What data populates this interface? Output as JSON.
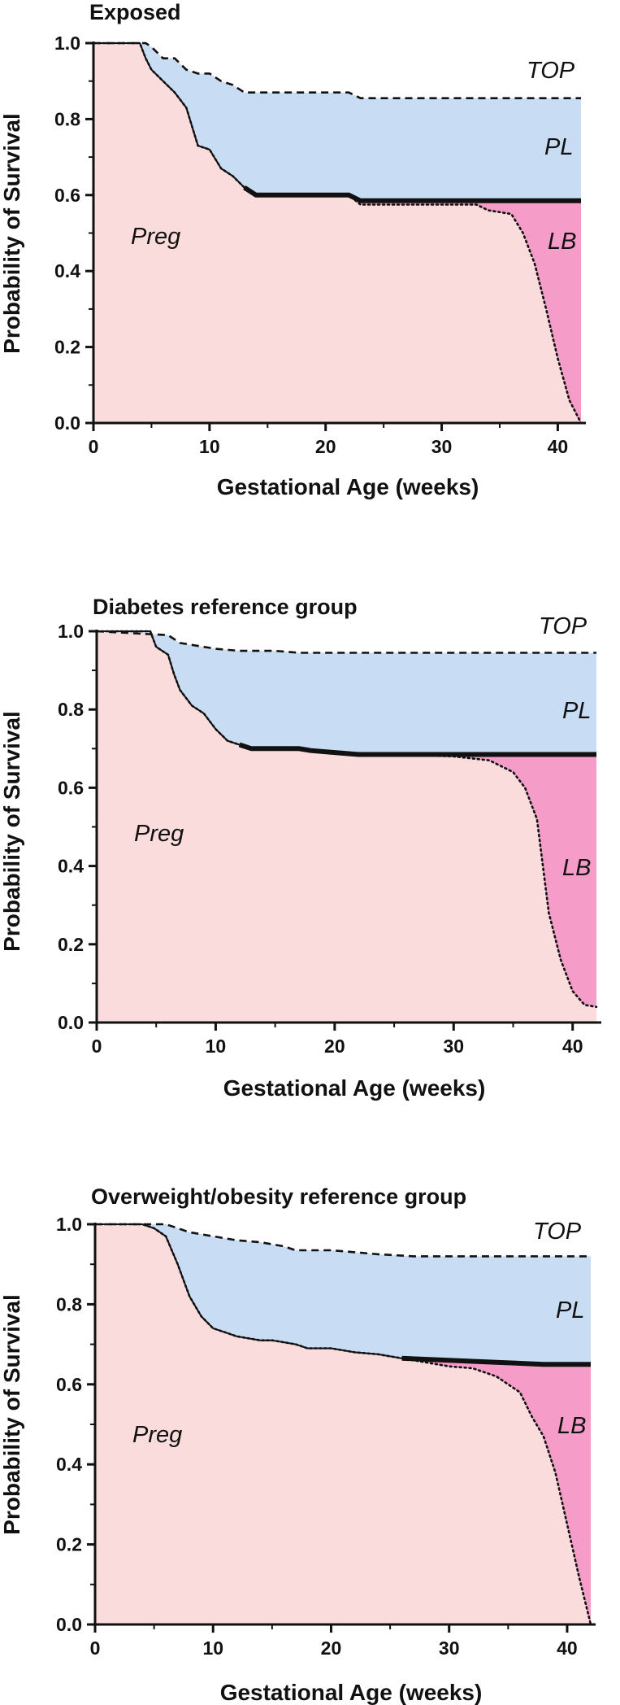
{
  "chart_data": [
    {
      "type": "area",
      "title": "Exposed",
      "xlabel": "Gestational Age (weeks)",
      "ylabel": "Probability of Survival",
      "xlim": [
        0,
        42
      ],
      "ylim": [
        0,
        1
      ],
      "xticks": [
        "0",
        "10",
        "20",
        "30",
        "40"
      ],
      "yticks": [
        "0.0",
        "0.2",
        "0.4",
        "0.6",
        "0.8",
        "1.0"
      ],
      "regions": {
        "top": "TOP",
        "pl": "PL",
        "lb": "LB",
        "preg": "Preg"
      },
      "colors": {
        "pl": "#c8dcf4",
        "lb": "#f59cc8",
        "preg": "#fbdcdc"
      },
      "series": [
        {
          "name": "TOP",
          "style": "dashed",
          "x": [
            0,
            4.5,
            5,
            6,
            7,
            8,
            9,
            10,
            11,
            12,
            13,
            14,
            15,
            22,
            23,
            42
          ],
          "y": [
            1.0,
            1.0,
            0.99,
            0.96,
            0.96,
            0.93,
            0.92,
            0.92,
            0.9,
            0.89,
            0.87,
            0.87,
            0.87,
            0.87,
            0.855,
            0.855
          ]
        },
        {
          "name": "PL",
          "style": "solid",
          "x": [
            0,
            4,
            4.5,
            5,
            6,
            7,
            8,
            9,
            10,
            11,
            12,
            13,
            14,
            22,
            23,
            42
          ],
          "y": [
            1.0,
            1.0,
            0.96,
            0.93,
            0.9,
            0.87,
            0.83,
            0.73,
            0.72,
            0.67,
            0.65,
            0.62,
            0.6,
            0.6,
            0.585,
            0.585
          ]
        },
        {
          "name": "LB",
          "style": "dotted",
          "x": [
            0,
            4,
            4.5,
            5,
            6,
            7,
            8,
            9,
            10,
            11,
            12,
            13,
            14,
            22,
            23,
            33,
            34,
            36,
            37,
            38,
            39,
            40,
            41,
            42
          ],
          "y": [
            1.0,
            1.0,
            0.96,
            0.93,
            0.9,
            0.87,
            0.83,
            0.73,
            0.72,
            0.67,
            0.65,
            0.62,
            0.6,
            0.6,
            0.575,
            0.575,
            0.56,
            0.55,
            0.5,
            0.42,
            0.3,
            0.17,
            0.06,
            0.0
          ]
        }
      ]
    },
    {
      "type": "area",
      "title": "Diabetes reference group",
      "xlabel": "Gestational Age (weeks)",
      "ylabel": "Probability of Survival",
      "xlim": [
        0,
        42
      ],
      "ylim": [
        0,
        1
      ],
      "xticks": [
        "0",
        "10",
        "20",
        "30",
        "40"
      ],
      "yticks": [
        "0.0",
        "0.2",
        "0.4",
        "0.6",
        "0.8",
        "1.0"
      ],
      "regions": {
        "top": "TOP",
        "pl": "PL",
        "lb": "LB",
        "preg": "Preg"
      },
      "colors": {
        "pl": "#c8dcf4",
        "lb": "#f59cc8",
        "preg": "#fbdcdc"
      },
      "series": [
        {
          "name": "TOP",
          "style": "dashed",
          "x": [
            0,
            6,
            7,
            8,
            9,
            10,
            12,
            15,
            17,
            19,
            42
          ],
          "y": [
            1.0,
            0.99,
            0.97,
            0.965,
            0.96,
            0.955,
            0.95,
            0.95,
            0.945,
            0.945,
            0.945
          ]
        },
        {
          "name": "PL",
          "style": "solid",
          "x": [
            0,
            4.5,
            5,
            6,
            6.5,
            7,
            8,
            9,
            10,
            11,
            12,
            13,
            15,
            17,
            18,
            20,
            22,
            25,
            30,
            42
          ],
          "y": [
            1.0,
            1.0,
            0.96,
            0.94,
            0.89,
            0.85,
            0.81,
            0.79,
            0.75,
            0.72,
            0.71,
            0.7,
            0.7,
            0.7,
            0.695,
            0.69,
            0.685,
            0.685,
            0.685,
            0.685
          ]
        },
        {
          "name": "LB",
          "style": "dotted",
          "x": [
            0,
            4.5,
            5,
            6,
            6.5,
            7,
            8,
            9,
            10,
            11,
            12,
            13,
            15,
            17,
            18,
            20,
            22,
            25,
            30,
            33,
            35,
            36,
            37,
            37.5,
            38,
            39,
            40,
            41,
            42
          ],
          "y": [
            1.0,
            1.0,
            0.96,
            0.94,
            0.89,
            0.85,
            0.81,
            0.79,
            0.75,
            0.72,
            0.71,
            0.7,
            0.7,
            0.7,
            0.695,
            0.69,
            0.685,
            0.685,
            0.68,
            0.67,
            0.64,
            0.6,
            0.52,
            0.4,
            0.28,
            0.16,
            0.08,
            0.045,
            0.04
          ]
        }
      ]
    },
    {
      "type": "area",
      "title": "Overweight/obesity reference group",
      "xlabel": "Gestational Age (weeks)",
      "ylabel": "Probability of Survival",
      "xlim": [
        0,
        42
      ],
      "ylim": [
        0,
        1
      ],
      "xticks": [
        "0",
        "10",
        "20",
        "30",
        "40"
      ],
      "yticks": [
        "0.0",
        "0.2",
        "0.4",
        "0.6",
        "0.8",
        "1.0"
      ],
      "regions": {
        "top": "TOP",
        "pl": "PL",
        "lb": "LB",
        "preg": "Preg"
      },
      "colors": {
        "pl": "#c8dcf4",
        "lb": "#f59cc8",
        "preg": "#fbdcdc"
      },
      "series": [
        {
          "name": "TOP",
          "style": "dashed",
          "x": [
            0,
            6,
            7,
            8,
            10,
            12,
            14,
            16,
            17,
            20,
            22,
            24,
            27,
            30,
            35,
            42
          ],
          "y": [
            1.0,
            1.0,
            0.99,
            0.98,
            0.97,
            0.96,
            0.955,
            0.945,
            0.935,
            0.935,
            0.93,
            0.925,
            0.92,
            0.92,
            0.92,
            0.92
          ]
        },
        {
          "name": "PL",
          "style": "solid",
          "x": [
            0,
            4,
            5,
            6,
            7,
            8,
            9,
            10,
            11,
            12,
            14,
            15,
            16,
            17,
            18,
            20,
            22,
            24,
            26,
            30,
            34,
            38,
            42
          ],
          "y": [
            1.0,
            1.0,
            0.99,
            0.97,
            0.9,
            0.82,
            0.77,
            0.74,
            0.73,
            0.72,
            0.71,
            0.71,
            0.705,
            0.7,
            0.69,
            0.69,
            0.68,
            0.675,
            0.665,
            0.66,
            0.655,
            0.65,
            0.65
          ]
        },
        {
          "name": "LB",
          "style": "dotted",
          "x": [
            0,
            4,
            5,
            6,
            7,
            8,
            9,
            10,
            11,
            12,
            14,
            15,
            16,
            17,
            18,
            20,
            22,
            24,
            26,
            30,
            32,
            34,
            35,
            36,
            37,
            38,
            39,
            40,
            41,
            42
          ],
          "y": [
            1.0,
            1.0,
            0.99,
            0.97,
            0.9,
            0.82,
            0.77,
            0.74,
            0.73,
            0.72,
            0.71,
            0.71,
            0.705,
            0.7,
            0.69,
            0.69,
            0.68,
            0.675,
            0.665,
            0.645,
            0.64,
            0.62,
            0.6,
            0.58,
            0.52,
            0.47,
            0.38,
            0.25,
            0.12,
            0.0
          ]
        }
      ]
    }
  ]
}
